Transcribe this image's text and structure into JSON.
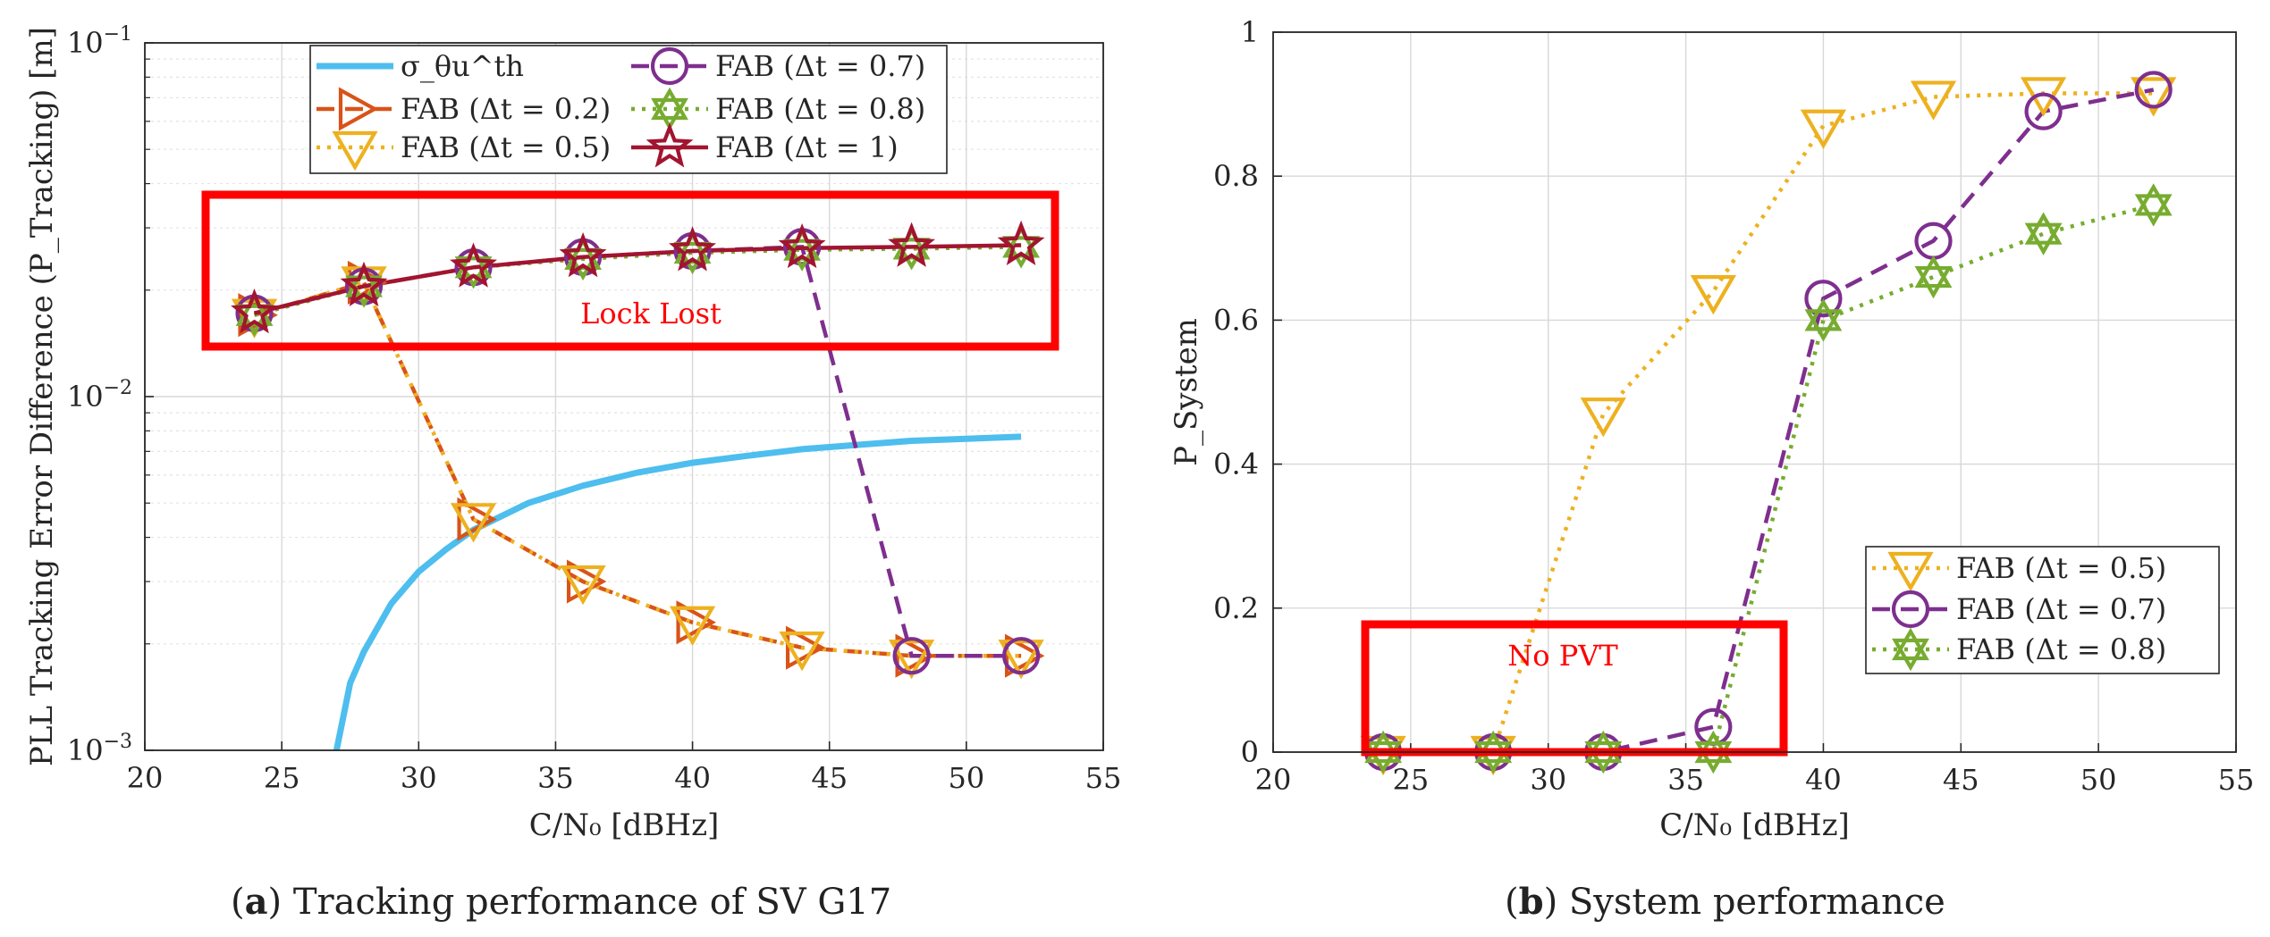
{
  "captions": [
    {
      "letter": "a",
      "text": ") Tracking performance of SV G17"
    },
    {
      "letter": "b",
      "text": ") System performance"
    }
  ],
  "chart_data": [
    {
      "type": "line",
      "xlabel": "C/N₀ [dBHz]",
      "ylabel": "PLL Tracking Error Difference (P_Tracking) [m]",
      "xlim": [
        20,
        55
      ],
      "ylim": [
        0.001,
        0.1
      ],
      "yscale": "log",
      "grid": true,
      "legend_position": "top",
      "xticks": [
        "20",
        "25",
        "30",
        "35",
        "40",
        "45",
        "50",
        "55"
      ],
      "yticks": [
        {
          "value": 0.001,
          "base": "10",
          "exp": "−3"
        },
        {
          "value": 0.01,
          "base": "10",
          "exp": "−2"
        },
        {
          "value": 0.1,
          "base": "10",
          "exp": "−1"
        }
      ],
      "annotations": [
        {
          "text": "Lock Lost",
          "color": "#ff0000"
        }
      ],
      "series": [
        {
          "name": "σ_θu^th",
          "color": "#4dbeee",
          "style": "solid",
          "marker": "none",
          "x": [
            27.0,
            27.5,
            28,
            29,
            30,
            31,
            32,
            34,
            36,
            38,
            40,
            42,
            44,
            46,
            48,
            50,
            52
          ],
          "y": [
            0.001,
            0.00155,
            0.0019,
            0.0026,
            0.0032,
            0.0037,
            0.0042,
            0.005,
            0.0056,
            0.0061,
            0.0065,
            0.0068,
            0.0071,
            0.0073,
            0.0075,
            0.0076,
            0.0077
          ]
        },
        {
          "name": "FAB (Δt = 0.2)",
          "color": "#d95319",
          "style": "dashed",
          "marker": "triangle-right",
          "x": [
            24,
            28,
            32,
            36,
            40,
            44,
            48,
            52
          ],
          "y": [
            0.017,
            0.021,
            0.0045,
            0.003,
            0.0023,
            0.00195,
            0.00185,
            0.00185
          ]
        },
        {
          "name": "FAB (Δt = 0.5)",
          "color": "#edb120",
          "style": "dotted",
          "marker": "triangle-down",
          "x": [
            24,
            28,
            32,
            36,
            40,
            44,
            48,
            52
          ],
          "y": [
            0.017,
            0.021,
            0.0045,
            0.003,
            0.0023,
            0.00195,
            0.00185,
            0.00185
          ]
        },
        {
          "name": "FAB (Δt = 0.7)",
          "color": "#7e2f8e",
          "style": "dashed",
          "marker": "circle",
          "x": [
            24,
            28,
            32,
            36,
            40,
            44,
            48,
            52
          ],
          "y": [
            0.0172,
            0.0205,
            0.0232,
            0.0248,
            0.0258,
            0.0265,
            0.00185,
            0.00185
          ]
        },
        {
          "name": "FAB (Δt = 0.8)",
          "color": "#77ac30",
          "style": "dotted",
          "marker": "hexagram",
          "x": [
            24,
            28,
            32,
            36,
            40,
            44,
            48,
            52
          ],
          "y": [
            0.017,
            0.0205,
            0.0232,
            0.0245,
            0.0255,
            0.026,
            0.0262,
            0.0265
          ]
        },
        {
          "name": "FAB (Δt = 1)",
          "color": "#a2142f",
          "style": "solid",
          "marker": "pentagram",
          "x": [
            24,
            28,
            32,
            36,
            40,
            44,
            48,
            52
          ],
          "y": [
            0.0172,
            0.0205,
            0.0232,
            0.0248,
            0.0258,
            0.0263,
            0.0265,
            0.0268
          ]
        }
      ]
    },
    {
      "type": "line",
      "xlabel": "C/N₀ [dBHz]",
      "ylabel": "P_System",
      "xlim": [
        20,
        55
      ],
      "ylim": [
        0,
        1
      ],
      "grid": true,
      "legend_position": "bottom-right",
      "xticks": [
        "20",
        "25",
        "30",
        "35",
        "40",
        "45",
        "50",
        "55"
      ],
      "yticks": [
        "0",
        "0.2",
        "0.4",
        "0.6",
        "0.8",
        "1"
      ],
      "annotations": [
        {
          "text": "No PVT",
          "color": "#ff0000"
        }
      ],
      "series": [
        {
          "name": "FAB (Δt = 0.5)",
          "color": "#edb120",
          "style": "dotted",
          "marker": "triangle-down",
          "x": [
            24,
            28,
            32,
            36,
            40,
            44,
            48,
            52
          ],
          "y": [
            0,
            0,
            0.47,
            0.64,
            0.87,
            0.91,
            0.915,
            0.915
          ]
        },
        {
          "name": "FAB (Δt = 0.7)",
          "color": "#7e2f8e",
          "style": "dashed",
          "marker": "circle",
          "x": [
            24,
            28,
            32,
            36,
            40,
            44,
            48,
            52
          ],
          "y": [
            0,
            0,
            0,
            0.035,
            0.63,
            0.71,
            0.89,
            0.92
          ]
        },
        {
          "name": "FAB (Δt = 0.8)",
          "color": "#77ac30",
          "style": "dotted",
          "marker": "hexagram",
          "x": [
            24,
            28,
            32,
            36,
            40,
            44,
            48,
            52
          ],
          "y": [
            0,
            0,
            0,
            0,
            0.6,
            0.66,
            0.72,
            0.76
          ]
        }
      ]
    }
  ]
}
